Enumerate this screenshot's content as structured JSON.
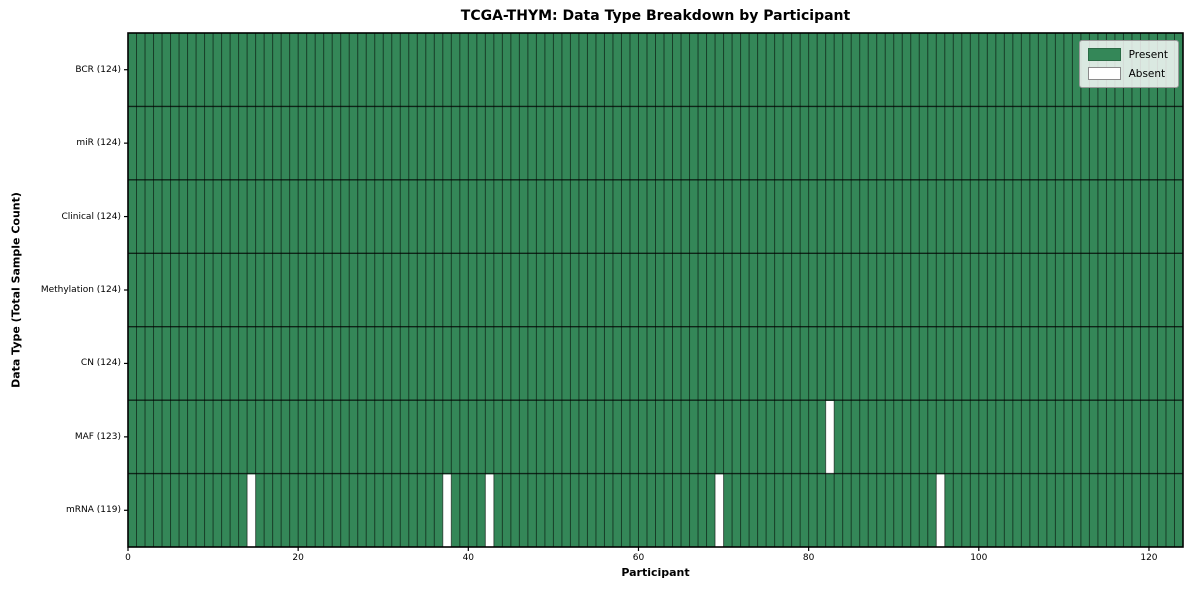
{
  "figure": {
    "title": "TCGA-THYM: Data Type Breakdown by Participant"
  },
  "chart_data": {
    "type": "heatmap",
    "title": "TCGA-THYM: Data Type Breakdown by Participant",
    "xlabel": "Participant",
    "ylabel": "Data Type (Total Sample Count)",
    "n_participants": 124,
    "x_ticks": [
      0,
      20,
      40,
      60,
      80,
      100,
      120
    ],
    "x_range": [
      0,
      124
    ],
    "grid": true,
    "rows": [
      {
        "label": "BCR (124)",
        "data_type": "BCR",
        "total": 124,
        "absent_participants": []
      },
      {
        "label": "miR (124)",
        "data_type": "miR",
        "total": 124,
        "absent_participants": []
      },
      {
        "label": "Clinical (124)",
        "data_type": "Clinical",
        "total": 124,
        "absent_participants": []
      },
      {
        "label": "Methylation (124)",
        "data_type": "Methylation",
        "total": 124,
        "absent_participants": []
      },
      {
        "label": "CN (124)",
        "data_type": "CN",
        "total": 124,
        "absent_participants": []
      },
      {
        "label": "MAF (123)",
        "data_type": "MAF",
        "total": 123,
        "absent_participants": [
          82
        ]
      },
      {
        "label": "mRNA (119)",
        "data_type": "mRNA",
        "total": 119,
        "absent_participants": [
          14,
          37,
          42,
          69,
          95
        ]
      }
    ],
    "legend": {
      "position": "upper right",
      "entries": [
        {
          "label": "Present",
          "color": "#348758",
          "edge": "#2a6b45"
        },
        {
          "label": "Absent",
          "color": "#ffffff",
          "edge": "#8a8a8a"
        }
      ]
    },
    "colors": {
      "present": "#348758",
      "absent": "#ffffff",
      "grid_line": "rgba(0,0,0,0.55)",
      "row_line": "rgba(0,0,0,0.72)",
      "spine": "#000000"
    }
  }
}
